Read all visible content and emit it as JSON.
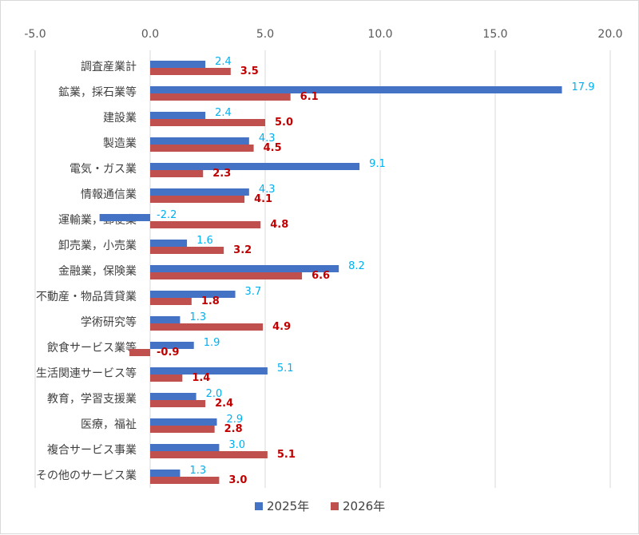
{
  "chart_data": {
    "type": "bar",
    "orientation": "horizontal",
    "categories": [
      "調査産業計",
      "鉱業，採石業等",
      "建設業",
      "製造業",
      "電気・ガス業",
      "情報通信業",
      "運輸業，郵便業",
      "卸売業，小売業",
      "金融業，保険業",
      "不動産・物品賃貸業",
      "学術研究等",
      "飲食サービス業等",
      "生活関連サービス等",
      "教育，学習支援業",
      "医療，福祉",
      "複合サービス事業",
      "その他のサービス業"
    ],
    "series": [
      {
        "name": "2025年",
        "color": "#4472c4",
        "label_color": "#00b0f0",
        "values": [
          2.4,
          17.9,
          2.4,
          4.3,
          9.1,
          4.3,
          -2.2,
          1.6,
          8.2,
          3.7,
          1.3,
          1.9,
          5.1,
          2.0,
          2.9,
          3.0,
          1.3
        ],
        "labels": [
          "2.4",
          "17.9",
          "2.4",
          "4.3",
          "9.1",
          "4.3",
          "-2.2",
          "1.6",
          "8.2",
          "3.7",
          "1.3",
          "1.9",
          "5.1",
          "2.0",
          "2.9",
          "3.0",
          "1.3"
        ]
      },
      {
        "name": "2026年",
        "color": "#c0504d",
        "label_color": "#c00000",
        "values": [
          3.5,
          6.1,
          5.0,
          4.5,
          2.3,
          4.1,
          4.8,
          3.2,
          6.6,
          1.8,
          4.9,
          -0.9,
          1.4,
          2.4,
          2.8,
          5.1,
          3.0
        ],
        "labels": [
          "3.5",
          "6.1",
          "5.0",
          "4.5",
          "2.3",
          "4.1",
          "4.8",
          "3.2",
          "6.6",
          "1.8",
          "4.9",
          "-0.9",
          "1.4",
          "2.4",
          "2.8",
          "5.1",
          "3.0"
        ]
      }
    ],
    "xlim": [
      -5.0,
      20.0
    ],
    "ticks": [
      "-5.0",
      "0.0",
      "5.0",
      "10.0",
      "15.0",
      "20.0"
    ],
    "tick_values": [
      -5,
      0,
      5,
      10,
      15,
      20
    ],
    "axis_position": "top",
    "grid": true,
    "grid_color": "#d9d9d9",
    "legend_position": "bottom"
  }
}
